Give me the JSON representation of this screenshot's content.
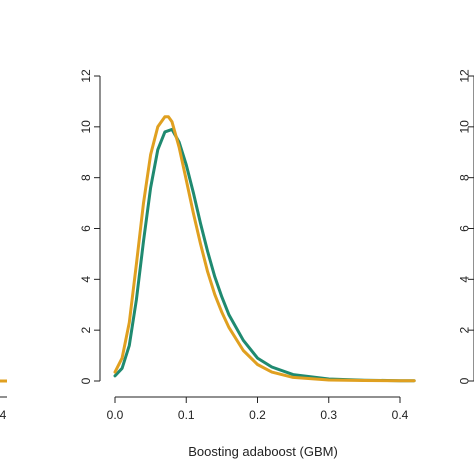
{
  "chart_data": {
    "type": "line",
    "title": "",
    "xlabel": "Boosting adaboost (GBM)",
    "ylabel": "",
    "xlim": [
      0.0,
      0.4
    ],
    "ylim": [
      0,
      12
    ],
    "x_ticks": [
      "0.0",
      "0.1",
      "0.2",
      "0.3",
      "0.4"
    ],
    "y_ticks": [
      "0",
      "2",
      "4",
      "6",
      "8",
      "10",
      "12"
    ],
    "grid": false,
    "legend": "none",
    "series": [
      {
        "color": "#1f8a70",
        "x": [
          0.0,
          0.01,
          0.02,
          0.03,
          0.04,
          0.05,
          0.06,
          0.07,
          0.08,
          0.09,
          0.1,
          0.11,
          0.12,
          0.13,
          0.14,
          0.15,
          0.16,
          0.18,
          0.2,
          0.22,
          0.25,
          0.3,
          0.35,
          0.4,
          0.42
        ],
        "y": [
          0.2,
          0.5,
          1.4,
          3.2,
          5.5,
          7.6,
          9.1,
          9.8,
          9.9,
          9.4,
          8.5,
          7.4,
          6.2,
          5.1,
          4.1,
          3.3,
          2.6,
          1.6,
          0.9,
          0.55,
          0.25,
          0.08,
          0.03,
          0.01,
          0.01
        ]
      },
      {
        "color": "#e0a020",
        "x": [
          0.0,
          0.01,
          0.02,
          0.03,
          0.04,
          0.05,
          0.06,
          0.07,
          0.075,
          0.08,
          0.09,
          0.1,
          0.11,
          0.12,
          0.13,
          0.14,
          0.15,
          0.16,
          0.18,
          0.2,
          0.22,
          0.25,
          0.3,
          0.35,
          0.4,
          0.42
        ],
        "y": [
          0.35,
          0.9,
          2.3,
          4.6,
          7.0,
          8.9,
          10.0,
          10.4,
          10.4,
          10.2,
          9.2,
          7.9,
          6.6,
          5.4,
          4.3,
          3.4,
          2.7,
          2.1,
          1.2,
          0.65,
          0.35,
          0.14,
          0.04,
          0.02,
          0.01,
          0.01
        ]
      }
    ],
    "left_panel": {
      "tick_label": "4",
      "curve_color": "#e0a020"
    },
    "right_panel": {
      "tick_labels": [
        "0",
        "2",
        "4",
        "6",
        "8",
        "10",
        "12"
      ]
    }
  }
}
